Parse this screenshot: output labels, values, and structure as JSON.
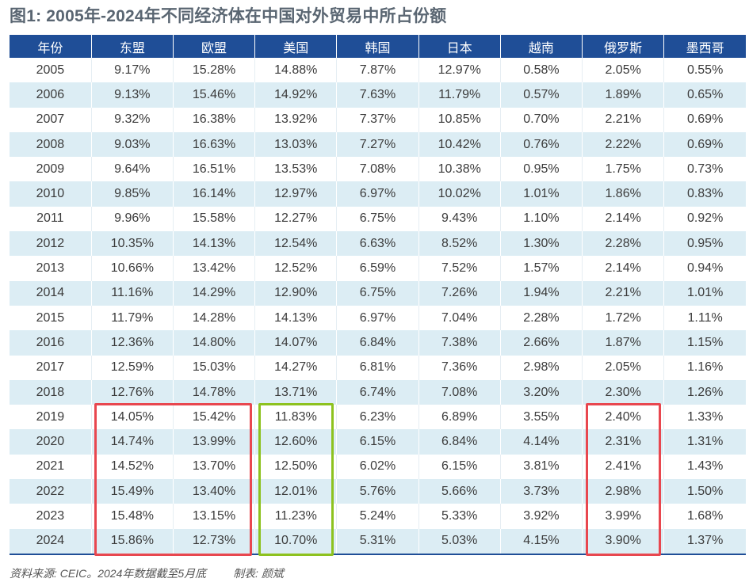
{
  "title": "图1: 2005年-2024年不同经济体在中国对外贸易中所占份额",
  "chart_data": {
    "type": "table",
    "columns": [
      "年份",
      "东盟",
      "欧盟",
      "美国",
      "韩国",
      "日本",
      "越南",
      "俄罗斯",
      "墨西哥"
    ],
    "rows": [
      [
        "2005",
        "9.17%",
        "15.28%",
        "14.88%",
        "7.87%",
        "12.97%",
        "0.58%",
        "2.05%",
        "0.55%"
      ],
      [
        "2006",
        "9.13%",
        "15.46%",
        "14.92%",
        "7.63%",
        "11.79%",
        "0.57%",
        "1.89%",
        "0.65%"
      ],
      [
        "2007",
        "9.32%",
        "16.38%",
        "13.92%",
        "7.37%",
        "10.85%",
        "0.70%",
        "2.21%",
        "0.69%"
      ],
      [
        "2008",
        "9.03%",
        "16.63%",
        "13.03%",
        "7.27%",
        "10.42%",
        "0.76%",
        "2.22%",
        "0.69%"
      ],
      [
        "2009",
        "9.64%",
        "16.51%",
        "13.53%",
        "7.08%",
        "10.38%",
        "0.95%",
        "1.75%",
        "0.73%"
      ],
      [
        "2010",
        "9.85%",
        "16.14%",
        "12.97%",
        "6.97%",
        "10.02%",
        "1.01%",
        "1.86%",
        "0.83%"
      ],
      [
        "2011",
        "9.96%",
        "15.58%",
        "12.27%",
        "6.75%",
        "9.43%",
        "1.10%",
        "2.14%",
        "0.92%"
      ],
      [
        "2012",
        "10.35%",
        "14.13%",
        "12.54%",
        "6.63%",
        "8.52%",
        "1.30%",
        "2.28%",
        "0.95%"
      ],
      [
        "2013",
        "10.66%",
        "13.42%",
        "12.52%",
        "6.59%",
        "7.52%",
        "1.57%",
        "2.14%",
        "0.94%"
      ],
      [
        "2014",
        "11.16%",
        "14.29%",
        "12.90%",
        "6.75%",
        "7.26%",
        "1.94%",
        "2.21%",
        "1.01%"
      ],
      [
        "2015",
        "11.79%",
        "14.28%",
        "14.13%",
        "6.97%",
        "7.04%",
        "2.28%",
        "1.72%",
        "1.11%"
      ],
      [
        "2016",
        "12.36%",
        "14.80%",
        "14.07%",
        "6.84%",
        "7.38%",
        "2.66%",
        "1.87%",
        "1.15%"
      ],
      [
        "2017",
        "12.59%",
        "15.03%",
        "14.27%",
        "6.81%",
        "7.36%",
        "2.98%",
        "2.05%",
        "1.16%"
      ],
      [
        "2018",
        "12.76%",
        "14.78%",
        "13.71%",
        "6.74%",
        "7.08%",
        "3.20%",
        "2.30%",
        "1.26%"
      ],
      [
        "2019",
        "14.05%",
        "15.42%",
        "11.83%",
        "6.23%",
        "6.89%",
        "3.55%",
        "2.40%",
        "1.33%"
      ],
      [
        "2020",
        "14.74%",
        "13.99%",
        "12.60%",
        "6.15%",
        "6.84%",
        "4.14%",
        "2.31%",
        "1.31%"
      ],
      [
        "2021",
        "14.52%",
        "13.70%",
        "12.50%",
        "6.02%",
        "6.15%",
        "3.81%",
        "2.41%",
        "1.43%"
      ],
      [
        "2022",
        "15.49%",
        "13.40%",
        "12.01%",
        "5.76%",
        "5.66%",
        "3.73%",
        "2.98%",
        "1.50%"
      ],
      [
        "2023",
        "15.48%",
        "13.15%",
        "11.23%",
        "5.24%",
        "5.33%",
        "3.92%",
        "3.99%",
        "1.68%"
      ],
      [
        "2024",
        "15.86%",
        "12.73%",
        "10.70%",
        "5.31%",
        "5.03%",
        "4.15%",
        "3.90%",
        "1.37%"
      ]
    ],
    "highlights": [
      {
        "columns": [
          "东盟",
          "欧盟"
        ],
        "years": [
          "2019",
          "2024"
        ],
        "color": "#e8474f"
      },
      {
        "columns": [
          "美国"
        ],
        "years": [
          "2019",
          "2024"
        ],
        "color": "#8dc21f"
      },
      {
        "columns": [
          "俄罗斯"
        ],
        "years": [
          "2019",
          "2024"
        ],
        "color": "#e8474f"
      }
    ]
  },
  "colors": {
    "header_bg": "#1f4e97",
    "band_bg": "#dcedf4"
  },
  "footer": {
    "source": "资料来源: CEIC。2024年数据截至5月底",
    "author": "制表: 颜斌"
  }
}
